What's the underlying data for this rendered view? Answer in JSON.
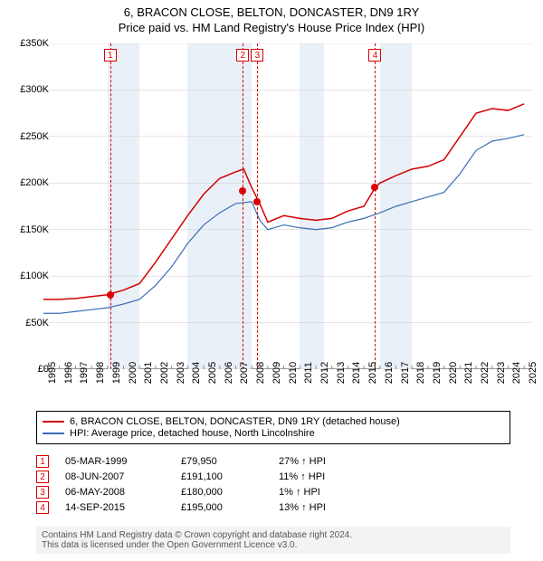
{
  "title": "6, BRACON CLOSE, BELTON, DONCASTER, DN9 1RY",
  "subtitle": "Price paid vs. HM Land Registry's House Price Index (HPI)",
  "chart": {
    "type": "line",
    "background_color": "#ffffff",
    "shaded_band_color": "#eaf0f7",
    "shaded_bands": [
      [
        1999,
        2001
      ],
      [
        2004,
        2008
      ],
      [
        2011,
        2012.5
      ],
      [
        2016,
        2018
      ]
    ],
    "xlim": [
      1995,
      2025.5
    ],
    "x_ticks": [
      1995,
      1996,
      1997,
      1998,
      1999,
      2000,
      2001,
      2002,
      2003,
      2004,
      2005,
      2006,
      2007,
      2008,
      2009,
      2010,
      2011,
      2012,
      2013,
      2014,
      2015,
      2016,
      2017,
      2018,
      2019,
      2020,
      2021,
      2022,
      2023,
      2024,
      2025
    ],
    "ylim": [
      0,
      350000
    ],
    "y_ticks": [
      0,
      50000,
      100000,
      150000,
      200000,
      250000,
      300000,
      350000
    ],
    "y_tick_labels": [
      "£0",
      "£50K",
      "£100K",
      "£150K",
      "£200K",
      "£250K",
      "£300K",
      "£350K"
    ],
    "grid_color": "#cccccc",
    "tick_fontsize": 11,
    "series": [
      {
        "name": "6, BRACON CLOSE, BELTON, DONCASTER, DN9 1RY (detached house)",
        "color": "#d40000",
        "line_width": 1.5,
        "data": [
          [
            1995,
            75000
          ],
          [
            1996,
            75000
          ],
          [
            1997,
            76000
          ],
          [
            1998,
            78000
          ],
          [
            1999,
            80000
          ],
          [
            2000,
            85000
          ],
          [
            2001,
            92000
          ],
          [
            2002,
            115000
          ],
          [
            2003,
            140000
          ],
          [
            2004,
            165000
          ],
          [
            2005,
            188000
          ],
          [
            2006,
            205000
          ],
          [
            2007,
            212000
          ],
          [
            2007.5,
            215000
          ],
          [
            2008,
            195000
          ],
          [
            2008.5,
            178000
          ],
          [
            2009,
            158000
          ],
          [
            2010,
            165000
          ],
          [
            2011,
            162000
          ],
          [
            2012,
            160000
          ],
          [
            2013,
            162000
          ],
          [
            2014,
            170000
          ],
          [
            2015,
            175000
          ],
          [
            2015.7,
            195000
          ],
          [
            2016,
            200000
          ],
          [
            2017,
            208000
          ],
          [
            2018,
            215000
          ],
          [
            2019,
            218000
          ],
          [
            2020,
            225000
          ],
          [
            2021,
            250000
          ],
          [
            2022,
            275000
          ],
          [
            2023,
            280000
          ],
          [
            2024,
            278000
          ],
          [
            2025,
            285000
          ]
        ]
      },
      {
        "name": "HPI: Average price, detached house, North Lincolnshire",
        "color": "#3b6fb6",
        "line_width": 1.2,
        "data": [
          [
            1995,
            60000
          ],
          [
            1996,
            60000
          ],
          [
            1997,
            62000
          ],
          [
            1998,
            64000
          ],
          [
            1999,
            66000
          ],
          [
            2000,
            70000
          ],
          [
            2001,
            75000
          ],
          [
            2002,
            90000
          ],
          [
            2003,
            110000
          ],
          [
            2004,
            135000
          ],
          [
            2005,
            155000
          ],
          [
            2006,
            168000
          ],
          [
            2007,
            178000
          ],
          [
            2008,
            180000
          ],
          [
            2008.5,
            160000
          ],
          [
            2009,
            150000
          ],
          [
            2010,
            155000
          ],
          [
            2011,
            152000
          ],
          [
            2012,
            150000
          ],
          [
            2013,
            152000
          ],
          [
            2014,
            158000
          ],
          [
            2015,
            162000
          ],
          [
            2016,
            168000
          ],
          [
            2017,
            175000
          ],
          [
            2018,
            180000
          ],
          [
            2019,
            185000
          ],
          [
            2020,
            190000
          ],
          [
            2021,
            210000
          ],
          [
            2022,
            235000
          ],
          [
            2023,
            245000
          ],
          [
            2024,
            248000
          ],
          [
            2025,
            252000
          ]
        ]
      }
    ],
    "sale_markers": [
      {
        "n": "1",
        "x": 1999.17,
        "y": 79950
      },
      {
        "n": "2",
        "x": 2007.44,
        "y": 191100
      },
      {
        "n": "3",
        "x": 2008.35,
        "y": 180000
      },
      {
        "n": "4",
        "x": 2015.7,
        "y": 195000
      }
    ],
    "marker_box_color": "#d40000",
    "vline_color": "#d40000"
  },
  "legend": {
    "items": [
      {
        "color": "#d40000",
        "label": "6, BRACON CLOSE, BELTON, DONCASTER, DN9 1RY (detached house)"
      },
      {
        "color": "#3b6fb6",
        "label": "HPI: Average price, detached house, North Lincolnshire"
      }
    ]
  },
  "sales": [
    {
      "n": "1",
      "date": "05-MAR-1999",
      "price": "£79,950",
      "pct": "27% ↑ HPI"
    },
    {
      "n": "2",
      "date": "08-JUN-2007",
      "price": "£191,100",
      "pct": "11% ↑ HPI"
    },
    {
      "n": "3",
      "date": "06-MAY-2008",
      "price": "£180,000",
      "pct": "1% ↑ HPI"
    },
    {
      "n": "4",
      "date": "14-SEP-2015",
      "price": "£195,000",
      "pct": "13% ↑ HPI"
    }
  ],
  "footer": {
    "line1": "Contains HM Land Registry data © Crown copyright and database right 2024.",
    "line2": "This data is licensed under the Open Government Licence v3.0."
  }
}
